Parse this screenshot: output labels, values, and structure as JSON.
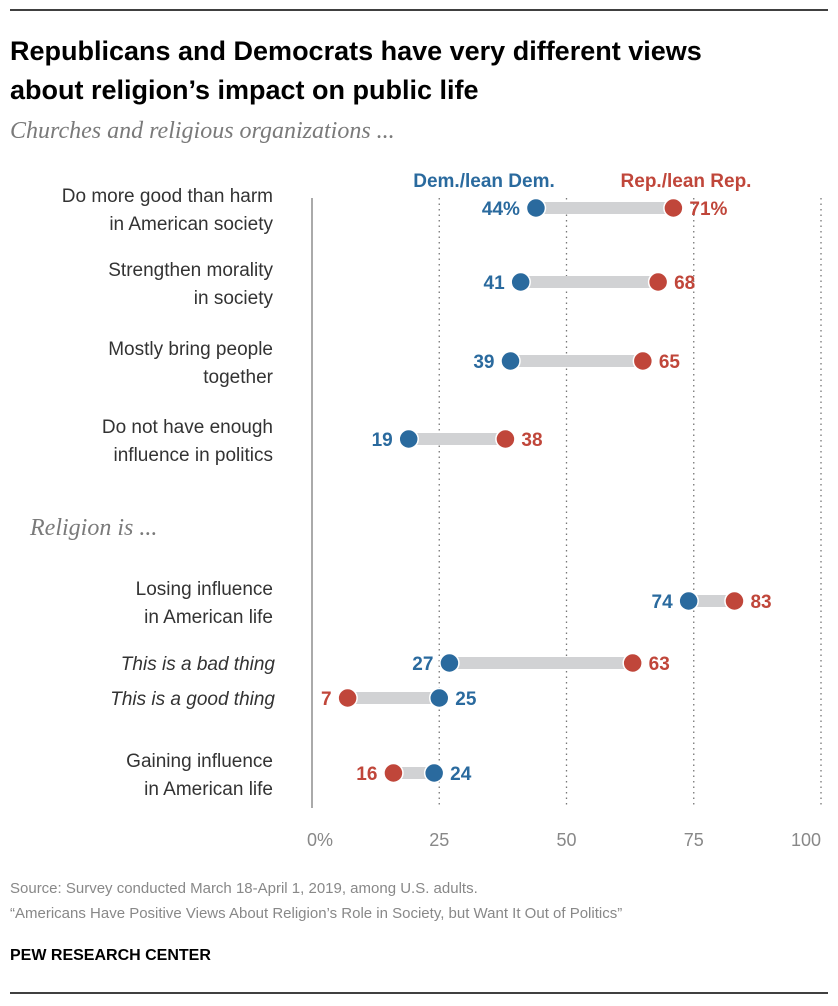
{
  "title_line1": "Republicans and Democrats have very different views",
  "title_line2": "about religion’s impact on public life",
  "subtitle": "Churches and religious organizations ...",
  "section2_label": "Religion is ...",
  "source": "Source: Survey conducted March 18-April 1, 2019, among U.S. adults.",
  "report": "“Americans Have Positive Views About Religion’s Role in Society, but Want It Out of Politics”",
  "brand": "PEW RESEARCH CENTER",
  "colors": {
    "dem": "#2a6a9e",
    "rep": "#c0463a",
    "bar": "#d1d2d4"
  },
  "chart_data": {
    "type": "dot-range",
    "xlim": [
      0,
      100
    ],
    "ticks": [
      "0%",
      "25",
      "50",
      "75",
      "100"
    ],
    "tick_values": [
      0,
      25,
      50,
      75,
      100
    ],
    "series": [
      {
        "name": "Dem./lean Dem."
      },
      {
        "name": "Rep./lean Rep."
      }
    ],
    "rows": [
      {
        "label": [
          "Do more good than harm",
          "in American society"
        ],
        "dem": 44,
        "rep": 71,
        "dem_label": "44%",
        "rep_label": "71%",
        "italic": false
      },
      {
        "label": [
          "Strengthen morality",
          "in society"
        ],
        "dem": 41,
        "rep": 68,
        "dem_label": "41",
        "rep_label": "68",
        "italic": false
      },
      {
        "label": [
          "Mostly bring people",
          "together"
        ],
        "dem": 39,
        "rep": 65,
        "dem_label": "39",
        "rep_label": "65",
        "italic": false
      },
      {
        "label": [
          "Do not have enough",
          "influence in politics"
        ],
        "dem": 19,
        "rep": 38,
        "dem_label": "19",
        "rep_label": "38",
        "italic": false
      },
      {
        "label": [
          "Losing influence",
          "in American life"
        ],
        "dem": 74,
        "rep": 83,
        "dem_label": "74",
        "rep_label": "83",
        "italic": false
      },
      {
        "label": [
          "This is a bad thing"
        ],
        "dem": 27,
        "rep": 63,
        "dem_label": "27",
        "rep_label": "63",
        "italic": true
      },
      {
        "label": [
          "This is a good thing"
        ],
        "dem": 25,
        "rep": 7,
        "dem_label": "25",
        "rep_label": "7",
        "italic": true
      },
      {
        "label": [
          "Gaining influence",
          "in American life"
        ],
        "dem": 24,
        "rep": 16,
        "dem_label": "24",
        "rep_label": "16",
        "italic": false
      }
    ]
  }
}
